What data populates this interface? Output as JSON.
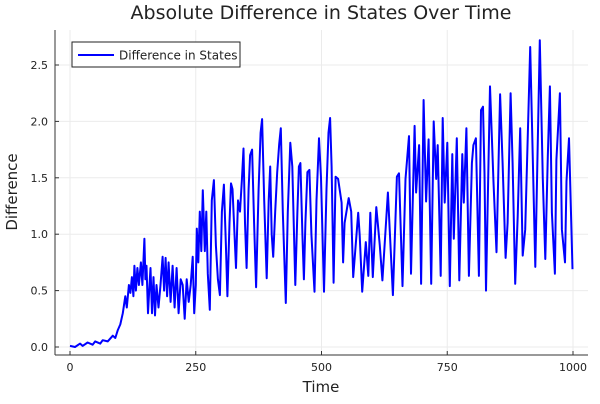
{
  "chart_data": {
    "type": "line",
    "title": "Absolute Difference in States Over Time",
    "xlabel": "Time",
    "ylabel": "Difference",
    "xlim": [
      -30,
      1030
    ],
    "ylim": [
      -0.07,
      2.8
    ],
    "xticks": [
      0,
      250,
      500,
      750,
      1000
    ],
    "xtick_labels": [
      "0",
      "250",
      "500",
      "750",
      "1000"
    ],
    "yticks": [
      0,
      0.5,
      1.0,
      1.5,
      2.0,
      2.5
    ],
    "ytick_labels": [
      "0.0",
      "0.5",
      "1.0",
      "1.5",
      "2.0",
      "2.5"
    ],
    "grid": true,
    "legend_position": "top-left",
    "series": [
      {
        "name": "Difference in States",
        "color": "#0000ff",
        "x": [
          0,
          10,
          20,
          25,
          35,
          45,
          50,
          60,
          65,
          75,
          85,
          90,
          95,
          100,
          105,
          110,
          113,
          117,
          120,
          123,
          126,
          128,
          131,
          134,
          137,
          141,
          144,
          148,
          150,
          152,
          155,
          158,
          160,
          163,
          166,
          169,
          172,
          176,
          180,
          184,
          187,
          190,
          193,
          196,
          200,
          204,
          208,
          212,
          216,
          220,
          224,
          228,
          232,
          236,
          240,
          244,
          247,
          250,
          252,
          255,
          258,
          261,
          264,
          268,
          271,
          274,
          278,
          282,
          286,
          290,
          294,
          298,
          302,
          306,
          310,
          313,
          317,
          320,
          323,
          327,
          330,
          334,
          338,
          342,
          345,
          348,
          351,
          355,
          358,
          362,
          366,
          370,
          375,
          379,
          382,
          386,
          391,
          395,
          398,
          401,
          404,
          408,
          412,
          416,
          419,
          423,
          429,
          433,
          438,
          442,
          448,
          452,
          455,
          458,
          462,
          465,
          468,
          472,
          476,
          480,
          486,
          490,
          495,
          499,
          505,
          510,
          514,
          517,
          520,
          524,
          528,
          533,
          540,
          543,
          546,
          554,
          559,
          563,
          573,
          576,
          581,
          588,
          593,
          597,
          602,
          609,
          616,
          621,
          632,
          642,
          650,
          654,
          661,
          667,
          674,
          678,
          685,
          688,
          694,
          698,
          703,
          708,
          713,
          718,
          723,
          728,
          731,
          737,
          741,
          745,
          750,
          755,
          760,
          763,
          769,
          774,
          780,
          783,
          788,
          793,
          799,
          802,
          807,
          813,
          817,
          821,
          824,
          827,
          835,
          842,
          848,
          855,
          860,
          866,
          870,
          876,
          880,
          885,
          890,
          895,
          900,
          905,
          915,
          925,
          934,
          940,
          945,
          950,
          954,
          958,
          964,
          967,
          974,
          978,
          984,
          987,
          992,
          999
        ],
        "y": [
          0.01,
          0.0,
          0.03,
          0.01,
          0.04,
          0.02,
          0.05,
          0.03,
          0.06,
          0.05,
          0.1,
          0.08,
          0.15,
          0.2,
          0.3,
          0.45,
          0.35,
          0.55,
          0.48,
          0.62,
          0.45,
          0.72,
          0.5,
          0.7,
          0.55,
          0.75,
          0.55,
          0.96,
          0.6,
          0.72,
          0.3,
          0.55,
          0.7,
          0.3,
          0.62,
          0.28,
          0.55,
          0.35,
          0.55,
          0.8,
          0.5,
          0.79,
          0.45,
          0.75,
          0.4,
          0.72,
          0.35,
          0.7,
          0.3,
          0.6,
          0.55,
          0.25,
          0.6,
          0.4,
          0.55,
          0.8,
          0.3,
          0.55,
          1.05,
          0.75,
          1.2,
          0.85,
          1.39,
          0.85,
          1.2,
          0.65,
          0.33,
          1.3,
          1.48,
          0.9,
          0.6,
          0.46,
          1.2,
          1.44,
          0.9,
          0.45,
          1.1,
          1.45,
          1.4,
          1.0,
          0.7,
          1.3,
          1.2,
          1.5,
          1.76,
          1.1,
          0.7,
          1.4,
          1.7,
          1.75,
          1.1,
          0.53,
          1.4,
          1.9,
          2.02,
          1.3,
          0.61,
          1.3,
          1.6,
          1.0,
          0.8,
          1.2,
          1.55,
          1.8,
          1.94,
          1.2,
          0.39,
          1.2,
          1.81,
          1.6,
          0.55,
          1.2,
          1.6,
          1.63,
          1.0,
          0.6,
          1.1,
          1.55,
          1.57,
          1.0,
          0.49,
          1.3,
          1.85,
          1.5,
          0.49,
          1.4,
          1.9,
          2.03,
          1.6,
          0.57,
          1.51,
          1.49,
          1.28,
          0.75,
          1.1,
          1.32,
          1.2,
          0.62,
          1.19,
          0.99,
          0.49,
          0.93,
          0.63,
          1.19,
          0.62,
          1.24,
          0.9,
          0.59,
          1.37,
          0.46,
          1.51,
          1.54,
          0.54,
          1.49,
          1.87,
          0.65,
          1.96,
          1.37,
          1.79,
          0.56,
          2.19,
          1.29,
          1.84,
          0.56,
          2.0,
          1.49,
          1.79,
          0.63,
          2.03,
          1.28,
          1.81,
          0.54,
          1.71,
          0.96,
          1.85,
          0.59,
          1.71,
          1.28,
          1.94,
          0.63,
          1.63,
          1.79,
          1.85,
          0.63,
          2.1,
          2.13,
          1.54,
          0.5,
          2.31,
          1.46,
          0.84,
          2.24,
          1.63,
          0.79,
          1.1,
          2.25,
          1.63,
          0.56,
          1.16,
          1.94,
          0.81,
          1.04,
          2.66,
          0.71,
          2.72,
          1.49,
          0.78,
          1.69,
          2.31,
          1.19,
          0.65,
          1.66,
          2.25,
          1.04,
          0.75,
          1.47,
          1.85,
          0.69
        ]
      }
    ]
  }
}
